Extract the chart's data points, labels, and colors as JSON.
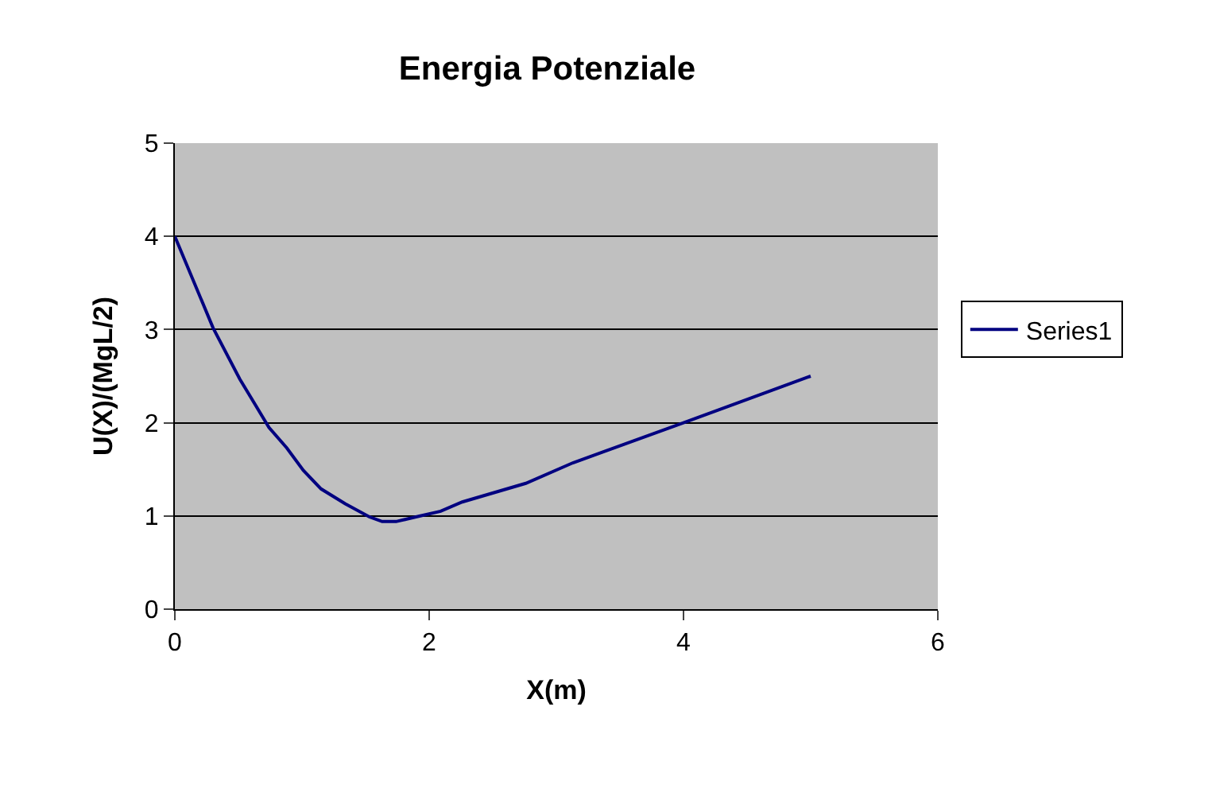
{
  "chart_data": {
    "type": "line",
    "title": "Energia Potenziale",
    "xlabel": "X(m)",
    "ylabel": "U(X)/(MgL/2)",
    "series": [
      {
        "name": "Series1",
        "color": "#000080",
        "x": [
          0,
          0.3,
          0.51,
          0.74,
          0.88,
          1.01,
          1.15,
          1.34,
          1.53,
          1.63,
          1.74,
          1.93,
          2.09,
          2.26,
          2.76,
          3.13,
          4,
          5
        ],
        "values": [
          4.0,
          3.02,
          2.47,
          1.95,
          1.73,
          1.49,
          1.29,
          1.13,
          0.99,
          0.94,
          0.94,
          1.0,
          1.05,
          1.15,
          1.35,
          1.57,
          2.0,
          2.5
        ]
      }
    ],
    "xlim": [
      0,
      6
    ],
    "xticks": [
      0,
      2,
      4,
      6
    ],
    "ylim": [
      0,
      5
    ],
    "yticks": [
      0,
      1,
      2,
      3,
      4,
      5
    ],
    "grid": "y",
    "legend": "right",
    "marker": "none",
    "line_style": "solid"
  }
}
